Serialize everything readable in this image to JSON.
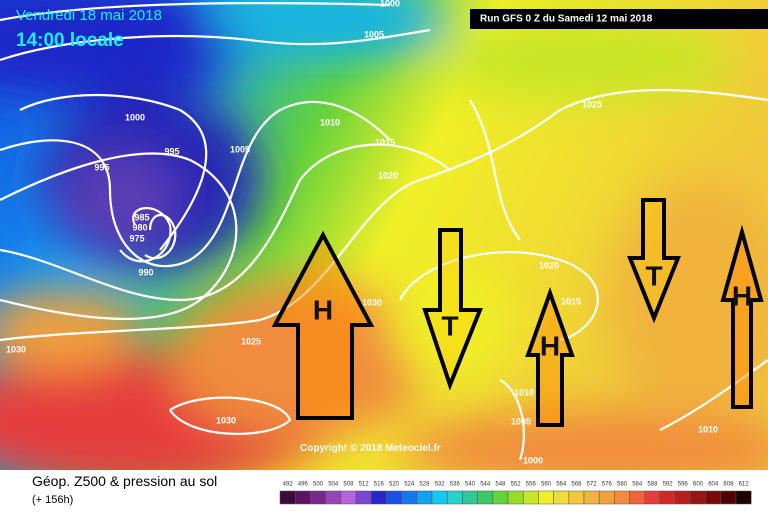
{
  "header": {
    "date": "Vendredi 18 mai 2018",
    "time": "14:00 locale",
    "run": "Run GFS 0 Z du Samedi 12 mai 2018"
  },
  "copyright": "Copyright © 2018 Meteociel.fr",
  "footer": {
    "title": "Géop. Z500 & pression au sol",
    "lead": "(+ 156h)"
  },
  "legend": {
    "values": [
      492,
      496,
      500,
      504,
      508,
      512,
      516,
      520,
      524,
      528,
      532,
      536,
      540,
      544,
      548,
      552,
      556,
      560,
      564,
      568,
      572,
      576,
      580,
      584,
      588,
      592,
      596,
      600,
      604,
      608,
      612
    ],
    "colors": [
      "#3c0a3c",
      "#5a1464",
      "#78288c",
      "#9646b4",
      "#b464dc",
      "#7846d2",
      "#2828c8",
      "#1e50e6",
      "#1478f0",
      "#14a0f0",
      "#14c8f0",
      "#28d2c8",
      "#32c896",
      "#3cc864",
      "#64d23c",
      "#96dc28",
      "#c8e628",
      "#f0f028",
      "#f0dc3c",
      "#f0c83c",
      "#f0b43c",
      "#f0a03c",
      "#f08c3c",
      "#f0643c",
      "#e63c3c",
      "#d22828",
      "#b41e1e",
      "#961414",
      "#780a0a",
      "#500505",
      "#1e0000"
    ]
  },
  "isobars": [
    "1000",
    "1005",
    "1000",
    "995",
    "1010",
    "1005",
    "1015",
    "995",
    "1020",
    "1025",
    "985",
    "980",
    "975",
    "990",
    "1030",
    "1020",
    "1015",
    "1025",
    "1030",
    "1030",
    "1010",
    "1005",
    "1000",
    "1010"
  ],
  "arrows": [
    {
      "label": "H"
    },
    {
      "label": "T"
    },
    {
      "label": "H"
    },
    {
      "label": "T"
    },
    {
      "label": "H"
    }
  ]
}
